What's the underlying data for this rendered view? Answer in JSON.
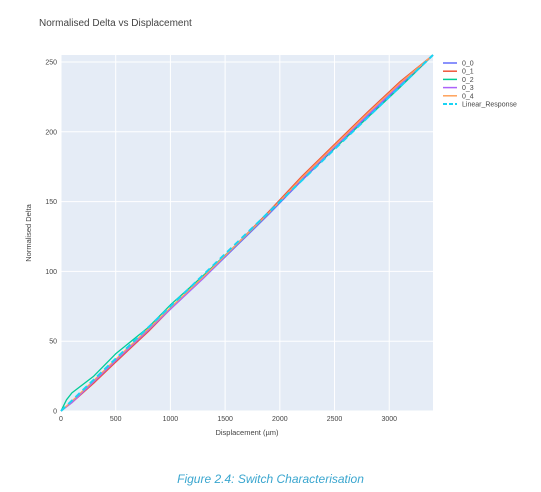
{
  "caption": "Figure 2.4: Switch Characterisation",
  "chart_data": {
    "type": "line",
    "title": "Normalised Delta vs Displacement",
    "xlabel": "Displacement (µm)",
    "ylabel": "Normalised Delta",
    "xlim": [
      0,
      3400
    ],
    "ylim": [
      0,
      255
    ],
    "xticks": [
      0,
      500,
      1000,
      1500,
      2000,
      2500,
      3000
    ],
    "yticks": [
      0,
      50,
      100,
      150,
      200,
      250
    ],
    "grid": true,
    "legend_position": "top-right",
    "colors": {
      "plot_bg": "#e5ecf6",
      "grid": "#ffffff",
      "caption": "#3aa6cf"
    },
    "series": [
      {
        "name": "0_0",
        "color": "#636efa",
        "dash": "solid",
        "x": [
          0,
          100,
          300,
          500,
          800,
          1000,
          1300,
          1600,
          1900,
          2200,
          2500,
          2800,
          3100,
          3400
        ],
        "y": [
          0,
          7,
          21,
          36,
          58,
          73,
          95,
          118,
          141,
          165,
          188,
          211,
          233,
          255
        ]
      },
      {
        "name": "0_1",
        "color": "#ef553b",
        "dash": "solid",
        "x": [
          0,
          100,
          300,
          500,
          800,
          1000,
          1300,
          1600,
          1900,
          2200,
          2500,
          2800,
          3100,
          3400
        ],
        "y": [
          0,
          6,
          20,
          35,
          57,
          73,
          96,
          119,
          143,
          168,
          191,
          214,
          236,
          255
        ]
      },
      {
        "name": "0_2",
        "color": "#00cc96",
        "dash": "solid",
        "x": [
          0,
          50,
          100,
          300,
          500,
          800,
          1000,
          1300,
          1600,
          1900,
          2200,
          2500,
          2800,
          3100,
          3400
        ],
        "y": [
          0,
          8,
          13,
          25,
          41,
          60,
          76,
          97,
          119,
          142,
          166,
          188,
          210,
          232,
          255
        ]
      },
      {
        "name": "0_3",
        "color": "#ab63fa",
        "dash": "solid",
        "x": [
          0,
          100,
          300,
          500,
          800,
          1000,
          1300,
          1600,
          1900,
          2200,
          2500,
          2800,
          3100,
          3400
        ],
        "y": [
          0,
          6,
          21,
          36,
          58,
          73,
          95,
          119,
          142,
          166,
          189,
          212,
          234,
          255
        ]
      },
      {
        "name": "0_4",
        "color": "#ffa15a",
        "dash": "solid",
        "x": [
          0,
          100,
          300,
          500,
          800,
          1000,
          1300,
          1600,
          1900,
          2200,
          2500,
          2800,
          3100,
          3400
        ],
        "y": [
          0,
          7,
          22,
          37,
          59,
          74,
          96,
          119,
          142,
          167,
          190,
          213,
          235,
          255
        ]
      },
      {
        "name": "Linear_Response",
        "color": "#19d3f3",
        "dash": "dash",
        "x": [
          0,
          3400
        ],
        "y": [
          0,
          255
        ]
      }
    ]
  }
}
